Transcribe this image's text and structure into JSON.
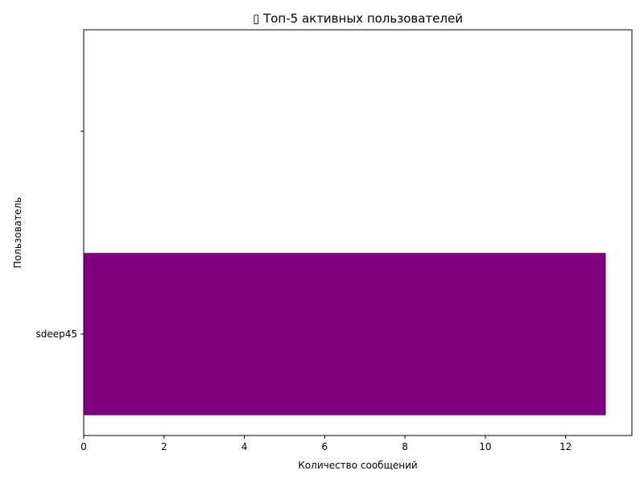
{
  "chart_data": {
    "type": "bar",
    "orientation": "horizontal",
    "title": "▯ Топ-5 активных пользователей",
    "xlabel": "Количество сообщений",
    "ylabel": "Пользователь",
    "categories": [
      "sdeep45",
      ""
    ],
    "values": [
      13,
      null
    ],
    "xlim": [
      0,
      13.65
    ],
    "x_ticks": [
      0,
      2,
      4,
      6,
      8,
      10,
      12
    ],
    "grid": false,
    "legend": "none",
    "bar_color": "#800080"
  }
}
